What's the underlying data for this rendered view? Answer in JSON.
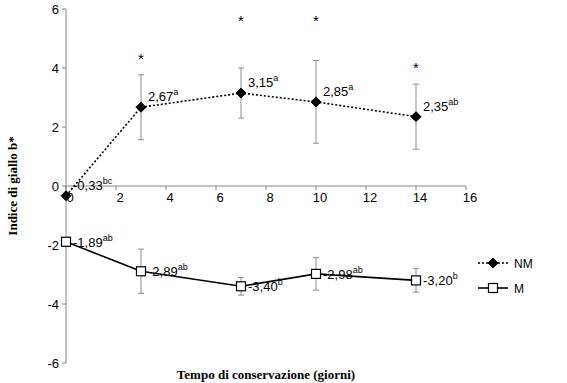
{
  "chart_data": {
    "type": "line",
    "x_label": "Tempo di conservazione (giorni)",
    "y_label": "Indice di giallo b*",
    "x": [
      0,
      3,
      7,
      10,
      14
    ],
    "xlim": [
      0,
      16
    ],
    "xticks": [
      0,
      2,
      4,
      6,
      8,
      10,
      12,
      14,
      16
    ],
    "ylim": [
      -6,
      6
    ],
    "yticks": [
      -6,
      -4,
      -2,
      0,
      2,
      4,
      6
    ],
    "legend": "right",
    "series": [
      {
        "name": "NM",
        "color": "#000000",
        "marker": "diamond",
        "line_style": "dotted",
        "values": [
          -0.33,
          2.67,
          3.15,
          2.85,
          2.35
        ],
        "errors": [
          0,
          1.1,
          0.85,
          1.4,
          1.1
        ],
        "value_labels": [
          "-0,33",
          "2,67",
          "3,15",
          "2,85",
          "2,35"
        ],
        "superscripts": [
          "bc",
          "a",
          "a",
          "a",
          "ab"
        ]
      },
      {
        "name": "M",
        "color": "#000000",
        "marker": "square",
        "line_style": "solid",
        "values": [
          -1.89,
          -2.89,
          -3.4,
          -2.98,
          -3.2
        ],
        "errors": [
          0,
          0.75,
          0.3,
          0.55,
          0.4
        ],
        "value_labels": [
          "-1,89",
          "-2,89",
          "-3,40",
          "-2,98",
          "-3,20"
        ],
        "superscripts": [
          "ab",
          "ab",
          "b",
          "ab",
          "b"
        ]
      }
    ],
    "annotations": [
      {
        "x": 3,
        "y": 4.3,
        "text": "*"
      },
      {
        "x": 7,
        "y": 5.6,
        "text": "*"
      },
      {
        "x": 10,
        "y": 5.6,
        "text": "*"
      },
      {
        "x": 14,
        "y": 4.0,
        "text": "*"
      }
    ]
  }
}
